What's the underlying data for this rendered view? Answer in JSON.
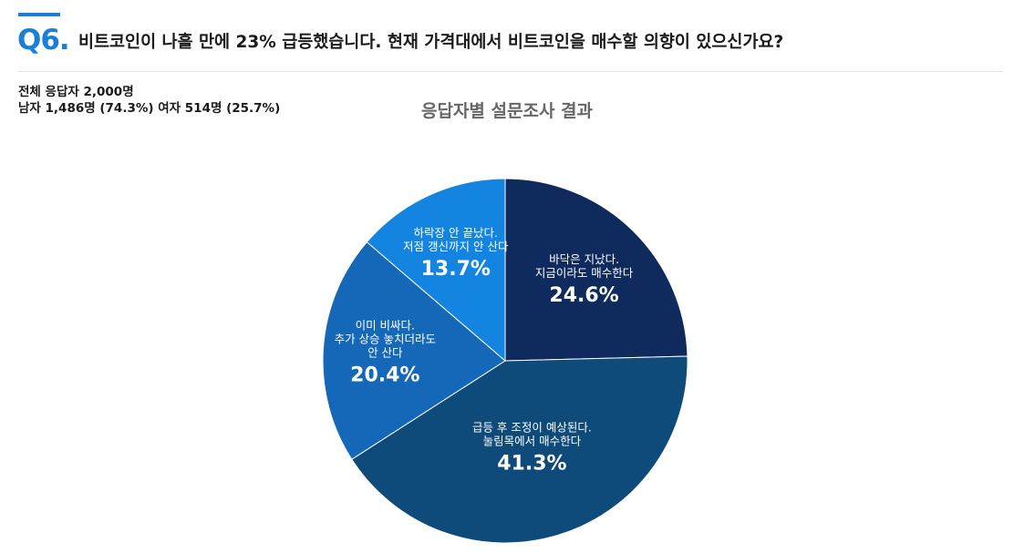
{
  "header": {
    "q_number": "Q6.",
    "question": "비트코인이 나흘 만에 23% 급등했습니다. 현재 가격대에서 비트코인을 매수할 의향이 있으신가요?"
  },
  "respondents": {
    "total": "전체 응답자 2,000명",
    "breakdown": "남자 1,486명 (74.3%) 여자 514명 (25.7%)"
  },
  "chart_data": {
    "type": "pie",
    "title": "응답자별 설문조사 결과",
    "slices": [
      {
        "label": [
          "바닥은 지났다.",
          "지금이라도 매수한다"
        ],
        "value": 24.6,
        "display": "24.6%",
        "color": "#0f2a5c"
      },
      {
        "label": [
          "급등 후 조정이 예상된다.",
          "눌림목에서 매수한다"
        ],
        "value": 41.3,
        "display": "41.3%",
        "color": "#0e4a7a"
      },
      {
        "label": [
          "이미 비싸다.",
          "추가 상승 놓치더라도",
          "안 산다"
        ],
        "value": 20.4,
        "display": "20.4%",
        "color": "#1568b8"
      },
      {
        "label": [
          "하락장 안 끝났다.",
          "저점 갱신까지 안 산다"
        ],
        "value": 13.7,
        "display": "13.7%",
        "color": "#1385e0"
      }
    ]
  }
}
